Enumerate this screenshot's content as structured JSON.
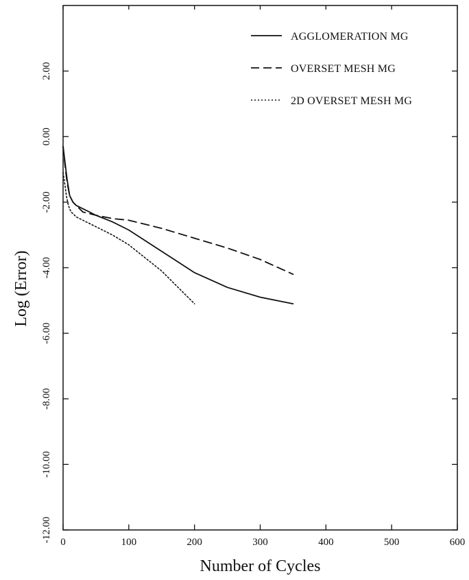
{
  "chart_data": {
    "type": "line",
    "title": "",
    "xlabel": "Number of Cycles",
    "ylabel": "Log (Error)",
    "xlim": [
      0,
      600
    ],
    "ylim": [
      -12,
      4
    ],
    "x_ticks": [
      0,
      100,
      200,
      300,
      400,
      500,
      600
    ],
    "x_tick_labels": [
      "0",
      "100",
      "200",
      "300",
      "400",
      "500",
      "600"
    ],
    "y_ticks": [
      -12,
      -10,
      -8,
      -6,
      -4,
      -2,
      0,
      2
    ],
    "y_tick_labels": [
      "-12.00",
      "-10.00",
      "-8.00",
      "-6.00",
      "-4.00",
      "-2.00",
      "0.00",
      "2.00"
    ],
    "grid": false,
    "legend_position": "top-right",
    "series": [
      {
        "name": "AGGLOMERATION MG",
        "style": "solid",
        "x": [
          0,
          3,
          6,
          10,
          15,
          20,
          30,
          50,
          75,
          100,
          150,
          200,
          250,
          300,
          350
        ],
        "y": [
          -0.3,
          -0.8,
          -1.3,
          -1.8,
          -2.0,
          -2.1,
          -2.2,
          -2.4,
          -2.6,
          -2.85,
          -3.5,
          -4.15,
          -4.6,
          -4.9,
          -5.1
        ]
      },
      {
        "name": "OVERSET MESH MG",
        "style": "dashed",
        "x": [
          0,
          3,
          6,
          10,
          15,
          20,
          30,
          50,
          75,
          100,
          150,
          200,
          250,
          300,
          350
        ],
        "y": [
          -0.3,
          -0.9,
          -1.4,
          -1.8,
          -2.0,
          -2.1,
          -2.3,
          -2.4,
          -2.5,
          -2.55,
          -2.8,
          -3.1,
          -3.4,
          -3.75,
          -4.2
        ]
      },
      {
        "name": "2D OVERSET MESH MG",
        "style": "dotted",
        "x": [
          0,
          3,
          5,
          8,
          12,
          15,
          20,
          30,
          50,
          75,
          100,
          125,
          150,
          175,
          200
        ],
        "y": [
          -1.1,
          -1.5,
          -1.8,
          -2.1,
          -2.3,
          -2.35,
          -2.45,
          -2.55,
          -2.75,
          -3.0,
          -3.3,
          -3.7,
          -4.1,
          -4.6,
          -5.1
        ]
      }
    ]
  }
}
